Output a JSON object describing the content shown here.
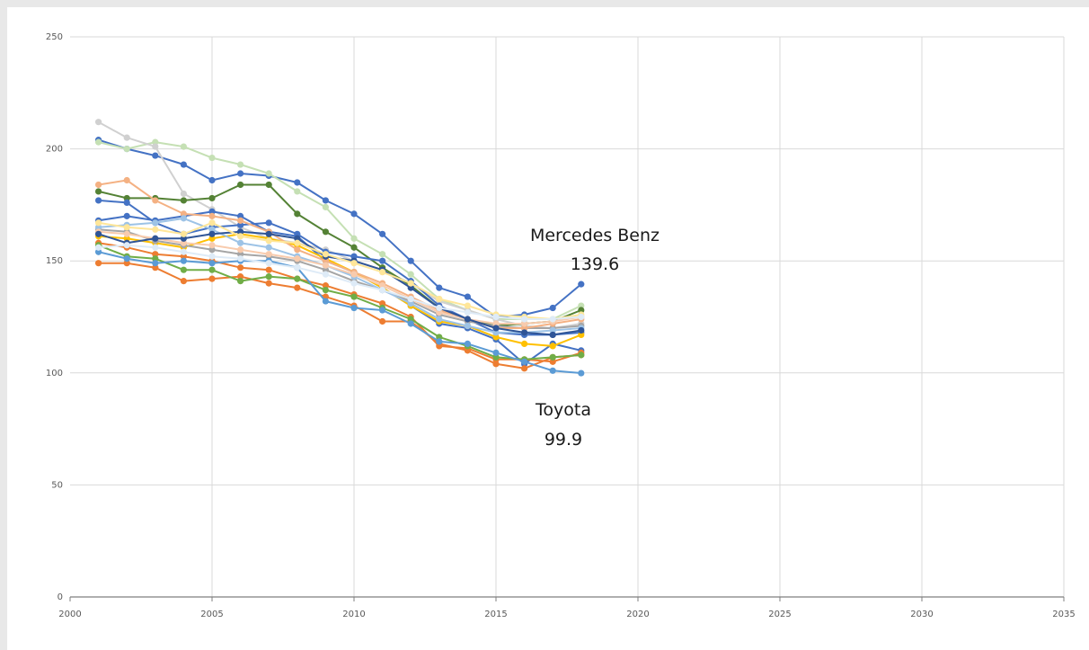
{
  "chart_data": {
    "type": "line",
    "title": "",
    "xlabel": "",
    "ylabel": "",
    "xlim": [
      2000,
      2035
    ],
    "ylim": [
      0,
      250
    ],
    "x_ticks": [
      2000,
      2005,
      2010,
      2015,
      2020,
      2025,
      2030,
      2035
    ],
    "y_ticks": [
      0,
      50,
      100,
      150,
      200,
      250
    ],
    "grid": true,
    "legend": "none",
    "x": [
      2001,
      2002,
      2003,
      2004,
      2005,
      2006,
      2007,
      2008,
      2009,
      2010,
      2011,
      2012,
      2013,
      2014,
      2015,
      2016,
      2017,
      2018
    ],
    "series": [
      {
        "color": "#4472c4",
        "values": [
          204,
          200,
          197,
          193,
          186,
          189,
          188,
          185,
          177,
          171,
          162,
          150,
          138,
          134,
          125,
          126,
          129,
          139.6
        ]
      },
      {
        "color": "#c5e0b4",
        "values": [
          203,
          200,
          203,
          201,
          196,
          193,
          189,
          181,
          174,
          160,
          153,
          144,
          133,
          128,
          124,
          124,
          124,
          130
        ]
      },
      {
        "color": "#d0d0d0",
        "values": [
          212,
          205,
          201,
          180,
          173,
          165,
          160,
          158,
          155,
          150,
          146,
          140,
          132,
          128,
          124,
          121,
          120,
          122
        ]
      },
      {
        "color": "#548235",
        "values": [
          181,
          178,
          178,
          177,
          178,
          184,
          184,
          171,
          163,
          156,
          147,
          139,
          129,
          124,
          121,
          122,
          123,
          128
        ]
      },
      {
        "color": "#4472c4",
        "values": [
          177,
          176,
          167,
          162,
          165,
          166,
          167,
          162,
          154,
          152,
          150,
          141,
          130,
          124,
          118,
          117,
          117,
          118
        ]
      },
      {
        "color": "#4472c4",
        "values": [
          168,
          170,
          168,
          170,
          172,
          170,
          163,
          161,
          150,
          145,
          138,
          130,
          122,
          120,
          115,
          104,
          113,
          110
        ]
      },
      {
        "color": "#ffc000",
        "values": [
          161,
          160,
          158,
          156,
          160,
          162,
          160,
          157,
          151,
          145,
          138,
          130,
          123,
          121,
          116,
          113,
          112,
          117
        ]
      },
      {
        "color": "#a5a5a5",
        "values": [
          164,
          163,
          159,
          157,
          155,
          153,
          152,
          150,
          146,
          141,
          137,
          132,
          126,
          123,
          121,
          120,
          120,
          121
        ]
      },
      {
        "color": "#ed7d31",
        "values": [
          158,
          156,
          153,
          152,
          150,
          147,
          146,
          142,
          139,
          135,
          131,
          125,
          112,
          111,
          106,
          106,
          105,
          109
        ]
      },
      {
        "color": "#f4b183",
        "values": [
          184,
          186,
          177,
          171,
          170,
          168,
          163,
          155,
          150,
          145,
          140,
          134,
          128,
          124,
          120,
          120,
          122,
          124
        ]
      },
      {
        "color": "#ed7d31",
        "values": [
          149,
          149,
          147,
          141,
          142,
          143,
          140,
          138,
          134,
          130,
          123,
          123,
          113,
          110,
          104,
          102,
          107,
          108
        ]
      },
      {
        "color": "#70ad47",
        "values": [
          157,
          152,
          151,
          146,
          146,
          141,
          143,
          142,
          137,
          134,
          129,
          124,
          116,
          112,
          107,
          106,
          107,
          108
        ]
      },
      {
        "color": "#5b9bd5",
        "values": [
          154,
          151,
          149,
          150,
          149,
          150,
          150,
          147,
          132,
          129,
          128,
          122,
          114,
          113,
          109,
          105,
          101,
          99.9
        ]
      },
      {
        "color": "#9dc3e6",
        "values": [
          165,
          166,
          167,
          169,
          164,
          158,
          156,
          152,
          148,
          143,
          137,
          131,
          124,
          121,
          118,
          118,
          119,
          120
        ]
      },
      {
        "color": "#f8cbad",
        "values": [
          163,
          162,
          160,
          158,
          157,
          155,
          153,
          151,
          148,
          144,
          139,
          133,
          127,
          124,
          122,
          122,
          123,
          125
        ]
      },
      {
        "color": "#2f5597",
        "values": [
          162,
          158,
          160,
          160,
          162,
          163,
          162,
          160,
          152,
          150,
          146,
          138,
          129,
          124,
          120,
          118,
          117,
          119
        ]
      },
      {
        "color": "#ffe699",
        "values": [
          167,
          165,
          164,
          162,
          167,
          161,
          159,
          158,
          153,
          149,
          145,
          140,
          133,
          130,
          126,
          125,
          124,
          126
        ]
      },
      {
        "color": "#deebf7",
        "values": [
          156,
          157,
          156,
          154,
          152,
          151,
          149,
          147,
          144,
          140,
          137,
          133,
          129,
          127,
          125,
          124,
          124,
          125
        ]
      }
    ],
    "annotations": [
      {
        "label": "Mercedes Benz",
        "value": "139.6"
      },
      {
        "label": "Toyota",
        "value": "99.9"
      }
    ]
  }
}
